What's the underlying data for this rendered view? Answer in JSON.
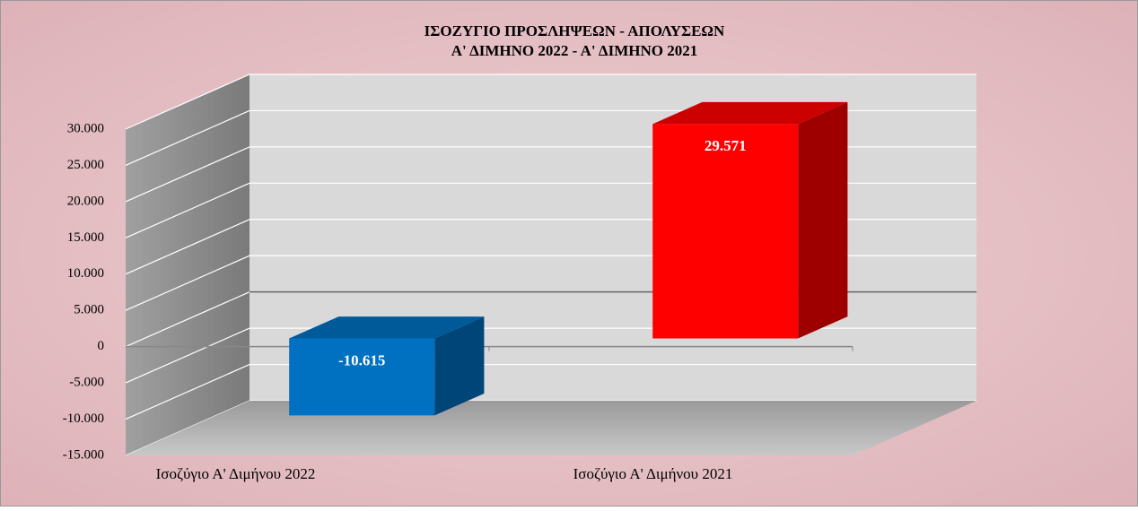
{
  "chart_data": {
    "type": "bar3d",
    "title": "ΙΣΟΖΥΓΙΟ  ΠΡΟΣΛΗΨΕΩΝ  -  ΑΠΟΛΥΣΕΩΝ",
    "subtitle": "Α' ΔΙΜΗΝΟ 2022  -  Α' ΔΙΜΗΝΟ 2021",
    "categories": [
      "Ισοζύγιο Α' Διμήνου 2022",
      "Ισοζύγιο Α' Διμήνου 2021"
    ],
    "values": [
      -10615,
      29571
    ],
    "value_labels": [
      "-10.615",
      "29.571"
    ],
    "colors": [
      "#0070c0",
      "#ff0000"
    ],
    "ylim": [
      -15000,
      30000
    ],
    "yticks": [
      {
        "value": -15000,
        "label": "-15.000"
      },
      {
        "value": -10000,
        "label": "-10.000"
      },
      {
        "value": -5000,
        "label": "-5.000"
      },
      0,
      {
        "value": 5000,
        "label": "5.000"
      },
      {
        "value": 10000,
        "label": "10.000"
      },
      {
        "value": 15000,
        "label": "15.000"
      },
      {
        "value": 20000,
        "label": "20.000"
      },
      {
        "value": 25000,
        "label": "25.000"
      },
      {
        "value": 30000,
        "label": "30.000"
      }
    ],
    "grid": true
  }
}
